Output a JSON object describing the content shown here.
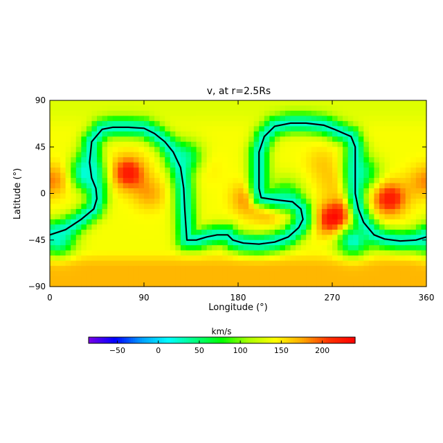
{
  "chart_data": {
    "type": "heatmap",
    "title": "v, at r=2.5Rs",
    "xlabel": "Longitude (°)",
    "ylabel": "Latitude (°)",
    "xlim": [
      0,
      360
    ],
    "ylim": [
      -90,
      90
    ],
    "xticks": [
      0,
      90,
      180,
      270,
      360
    ],
    "xtick_labels": [
      "0",
      "90",
      "180",
      "270",
      "360"
    ],
    "yticks": [
      -90,
      -45,
      0,
      45,
      90
    ],
    "ytick_labels": [
      "−90",
      "−45",
      "0",
      "45",
      "90"
    ],
    "colorbar": {
      "label": "km/s",
      "range": [
        -85,
        240
      ],
      "ticks": [
        -50,
        0,
        50,
        100,
        150,
        200
      ],
      "tick_labels": [
        "−50",
        "0",
        "50",
        "100",
        "150",
        "200"
      ],
      "colormap": [
        "#7a00e6",
        "#0000ff",
        "#00a0ff",
        "#00ffff",
        "#00ff80",
        "#00ff00",
        "#aaff00",
        "#ffff00",
        "#ffaa00",
        "#ff3300",
        "#ff0000"
      ]
    },
    "field": {
      "background_speed": 140,
      "polar_speed_north": 130,
      "polar_speed_south": 170,
      "features": [
        {
          "lon": 75,
          "lat": 20,
          "speed": 225
        },
        {
          "lon": 95,
          "lat": 0,
          "speed": 175
        },
        {
          "lon": 10,
          "lat": 15,
          "speed": 170
        },
        {
          "lon": 355,
          "lat": 10,
          "speed": 170
        },
        {
          "lon": 290,
          "lat": -15,
          "speed": 200
        },
        {
          "lon": 270,
          "lat": -25,
          "speed": 230
        },
        {
          "lon": 270,
          "lat": 10,
          "speed": 160
        },
        {
          "lon": 325,
          "lat": -5,
          "speed": 225
        },
        {
          "lon": 190,
          "lat": -5,
          "speed": 190
        },
        {
          "lon": 210,
          "lat": -15,
          "speed": 175
        },
        {
          "lon": 260,
          "lat": 30,
          "speed": 160
        },
        {
          "lon": 150,
          "lat": 25,
          "speed": 150
        },
        {
          "lon": 35,
          "lat": 20,
          "speed": 10
        },
        {
          "lon": 8,
          "lat": -45,
          "speed": 30
        },
        {
          "lon": 290,
          "lat": -45,
          "speed": 20
        },
        {
          "lon": 130,
          "lat": 35,
          "speed": 45
        },
        {
          "lon": 300,
          "lat": 20,
          "speed": 60
        },
        {
          "lon": 225,
          "lat": 0,
          "speed": 80
        }
      ]
    },
    "neutral_line": [
      [
        0,
        -40
      ],
      [
        15,
        -35
      ],
      [
        30,
        -25
      ],
      [
        42,
        -15
      ],
      [
        45,
        -5
      ],
      [
        44,
        5
      ],
      [
        40,
        15
      ],
      [
        38,
        30
      ],
      [
        40,
        50
      ],
      [
        50,
        62
      ],
      [
        60,
        64
      ],
      [
        75,
        64
      ],
      [
        90,
        63
      ],
      [
        100,
        58
      ],
      [
        110,
        50
      ],
      [
        118,
        40
      ],
      [
        125,
        25
      ],
      [
        128,
        5
      ],
      [
        129,
        -15
      ],
      [
        130,
        -30
      ],
      [
        131,
        -45
      ],
      [
        140,
        -45
      ],
      [
        150,
        -42
      ],
      [
        160,
        -40
      ],
      [
        170,
        -40
      ],
      [
        175,
        -45
      ],
      [
        185,
        -48
      ],
      [
        200,
        -49
      ],
      [
        215,
        -47
      ],
      [
        228,
        -42
      ],
      [
        238,
        -33
      ],
      [
        242,
        -25
      ],
      [
        240,
        -15
      ],
      [
        232,
        -8
      ],
      [
        215,
        -6
      ],
      [
        202,
        -4
      ],
      [
        200,
        5
      ],
      [
        200,
        20
      ],
      [
        200,
        40
      ],
      [
        205,
        55
      ],
      [
        215,
        65
      ],
      [
        230,
        68
      ],
      [
        245,
        68
      ],
      [
        262,
        66
      ],
      [
        272,
        62
      ],
      [
        288,
        55
      ],
      [
        292,
        45
      ],
      [
        292,
        20
      ],
      [
        292,
        0
      ],
      [
        295,
        -15
      ],
      [
        300,
        -28
      ],
      [
        310,
        -40
      ],
      [
        320,
        -44
      ],
      [
        335,
        -46
      ],
      [
        350,
        -45
      ],
      [
        360,
        -42
      ]
    ]
  }
}
